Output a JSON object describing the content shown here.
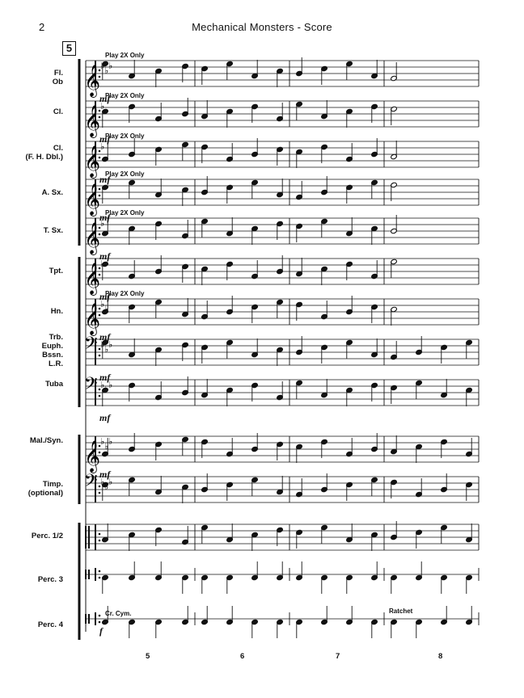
{
  "header": {
    "page_number": "2",
    "title": "Mechanical Monsters - Score",
    "rehearsal_mark": "5"
  },
  "instruments": [
    {
      "id": "fl-ob",
      "lines": [
        "Fl.",
        "Ob"
      ],
      "clef": "treble",
      "flats": 3,
      "annotation": "Play 2X Only",
      "dynamic": "mf"
    },
    {
      "id": "cl",
      "lines": [
        "Cl."
      ],
      "clef": "treble",
      "flats": 1,
      "annotation": "Play 2X Only",
      "dynamic": "mf"
    },
    {
      "id": "cl-fh",
      "lines": [
        "Cl.",
        "(F. H. Dbl.)"
      ],
      "clef": "treble",
      "flats": 1,
      "annotation": "Play 2X Only",
      "dynamic": "mf"
    },
    {
      "id": "asx",
      "lines": [
        "A. Sx."
      ],
      "clef": "treble",
      "flats": 0,
      "annotation": "Play 2X Only",
      "dynamic": "mf"
    },
    {
      "id": "tsx",
      "lines": [
        "T. Sx."
      ],
      "clef": "treble",
      "flats": 1,
      "annotation": "Play 2X Only",
      "dynamic": "mf"
    },
    {
      "id": "tpt",
      "lines": [
        "Tpt."
      ],
      "clef": "treble",
      "flats": 1,
      "annotation": "",
      "dynamic": "mf"
    },
    {
      "id": "hn",
      "lines": [
        "Hn."
      ],
      "clef": "treble",
      "flats": 2,
      "annotation": "Play 2X Only",
      "dynamic": "mf"
    },
    {
      "id": "trb",
      "lines": [
        "Trb.",
        "Euph.",
        "Bssn.",
        "L.R."
      ],
      "clef": "bass",
      "flats": 3,
      "annotation": "",
      "dynamic": "mf"
    },
    {
      "id": "tuba",
      "lines": [
        "Tuba"
      ],
      "clef": "bass",
      "flats": 3,
      "annotation": "",
      "dynamic": "mf"
    },
    {
      "id": "mal",
      "lines": [
        "Mal./Syn."
      ],
      "clef": "treble",
      "flats": 3,
      "annotation": "",
      "dynamic": "mf"
    },
    {
      "id": "timp",
      "lines": [
        "Timp.",
        "(optional)"
      ],
      "clef": "bass",
      "flats": 3,
      "annotation": "",
      "dynamic": ""
    },
    {
      "id": "perc12",
      "lines": [
        "Perc. 1/2"
      ],
      "clef": "percussion",
      "flats": 0,
      "annotation": "",
      "dynamic": ""
    },
    {
      "id": "perc3",
      "lines": [
        "Perc. 3"
      ],
      "clef": "percussion",
      "flats": 0,
      "annotation": "",
      "dynamic": ""
    },
    {
      "id": "perc4",
      "lines": [
        "Perc. 4"
      ],
      "clef": "percussion",
      "flats": 0,
      "annotation": "Cr. Cym.",
      "dynamic": "f"
    }
  ],
  "perc4_measure8_annotation": "Ratchet",
  "measure_numbers": [
    "5",
    "6",
    "7",
    "8"
  ]
}
